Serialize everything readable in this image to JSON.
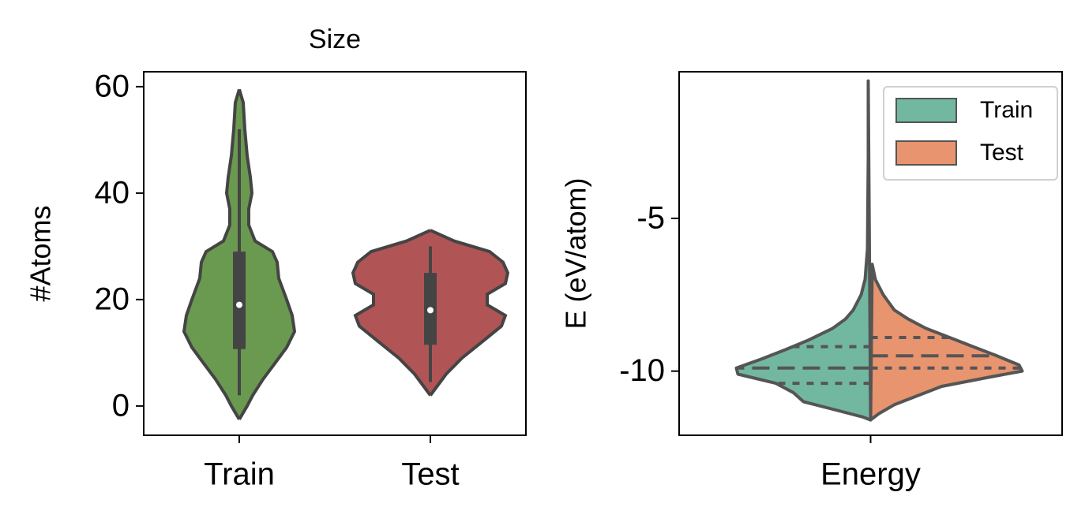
{
  "chart_data": [
    {
      "type": "violin",
      "title": "Size",
      "y_label": "#Atoms",
      "categories": [
        "Train",
        "Test"
      ],
      "ylim": [
        -5.5,
        62.8
      ],
      "yticks": [
        0,
        20,
        40,
        60
      ],
      "edge_color": "#444444",
      "series": [
        {
          "color": "#6a9a50",
          "y": [
            59.5,
            57,
            52,
            47,
            43,
            40,
            37,
            34,
            31,
            29,
            27,
            24,
            20,
            17,
            14,
            11,
            8,
            5,
            2,
            0,
            -2.5
          ],
          "density": [
            0,
            0.05,
            0.07,
            0.1,
            0.14,
            0.16,
            0.12,
            0.12,
            0.2,
            0.42,
            0.48,
            0.5,
            0.6,
            0.67,
            0.7,
            0.6,
            0.45,
            0.3,
            0.17,
            0.1,
            0
          ],
          "whisker_low": 2,
          "q1": 10.7,
          "median": 19,
          "q3": 29,
          "whisker_high": 52
        },
        {
          "color": "#b05456",
          "y": [
            33,
            31,
            29,
            27,
            25,
            23,
            21,
            19,
            17,
            15,
            12,
            9,
            6,
            4,
            2
          ],
          "density": [
            0,
            0.3,
            0.75,
            0.92,
            0.98,
            0.95,
            0.72,
            0.72,
            0.95,
            0.9,
            0.65,
            0.4,
            0.2,
            0.1,
            0
          ],
          "whisker_low": 4.5,
          "q1": 11.5,
          "median": 18,
          "q3": 25,
          "whisker_high": 30
        }
      ]
    },
    {
      "type": "split_violin",
      "y_label": "E (eV/atom)",
      "categories": [
        "Energy"
      ],
      "ylim": [
        -12.1,
        -0.2
      ],
      "yticks": [
        -5,
        -10
      ],
      "edge_color": "#555555",
      "legend": "upper right",
      "series": [
        {
          "name": "Train",
          "color": "#72b8a1",
          "y": [
            -0.5,
            -3,
            -6,
            -7,
            -7.5,
            -8,
            -8.3,
            -8.6,
            -9,
            -9.3,
            -9.6,
            -9.9,
            -10.1,
            -10.4,
            -10.7,
            -11,
            -11.3,
            -11.5,
            -11.6
          ],
          "density": [
            0.03,
            0.03,
            0.04,
            0.07,
            0.12,
            0.22,
            0.32,
            0.48,
            0.8,
            1.08,
            1.38,
            1.7,
            1.68,
            1.2,
            0.98,
            0.85,
            0.4,
            0.1,
            0
          ],
          "quartiles": [
            -10.4,
            -9.9,
            -9.2
          ]
        },
        {
          "name": "Test",
          "color": "#e8946f",
          "y": [
            -6.5,
            -7,
            -7.5,
            -8,
            -8.3,
            -8.6,
            -8.9,
            -9.2,
            -9.5,
            -9.8,
            -10,
            -10.2,
            -10.5,
            -10.8,
            -11.1,
            -11.4,
            -11.6
          ],
          "density": [
            0.02,
            0.06,
            0.16,
            0.3,
            0.48,
            0.7,
            1.0,
            1.3,
            1.6,
            1.88,
            1.92,
            1.5,
            0.9,
            0.6,
            0.3,
            0.1,
            0
          ],
          "quartiles": [
            -9.9,
            -9.5,
            -8.9
          ]
        }
      ]
    }
  ]
}
